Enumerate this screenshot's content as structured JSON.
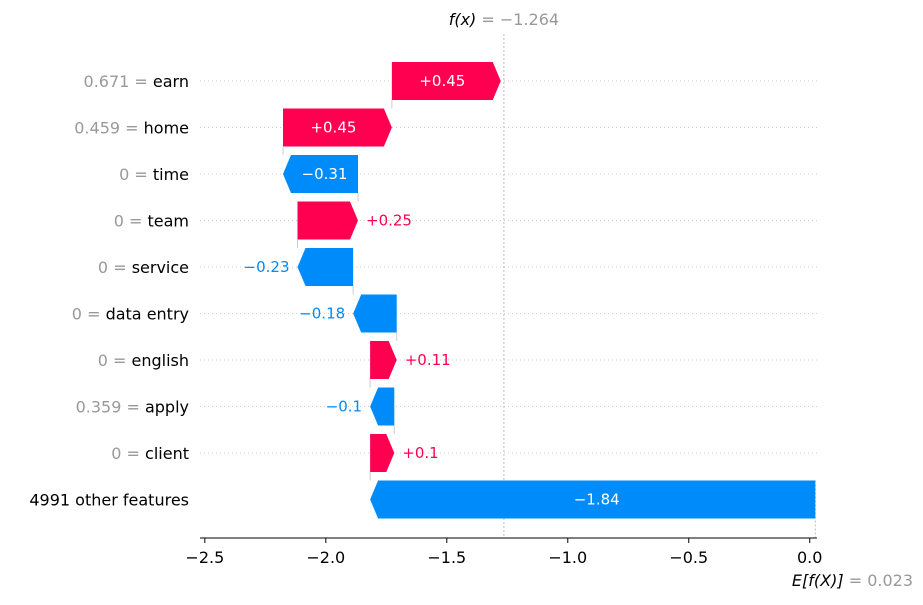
{
  "colors": {
    "positive": "#ff0051",
    "negative": "#008bfb",
    "muted": "#999999",
    "grid": "#cccccc"
  },
  "chart_data": {
    "type": "waterfall",
    "fx_label": "f(x)",
    "fx_value": "−1.264",
    "fx": -1.264,
    "base_label": "E[f(X)]",
    "base_value": "0.023",
    "base": 0.023,
    "xlim": [
      -2.52,
      0.03
    ],
    "xticks": [
      {
        "value": -2.5,
        "label": "−2.5"
      },
      {
        "value": -2.0,
        "label": "−2.0"
      },
      {
        "value": -1.5,
        "label": "−1.5"
      },
      {
        "value": -1.0,
        "label": "−1.0"
      },
      {
        "value": -0.5,
        "label": "−0.5"
      },
      {
        "value": 0.0,
        "label": "0.0"
      }
    ],
    "features": [
      {
        "value_text": "0.671",
        "name": "earn",
        "shap": 0.45,
        "label": "+0.45"
      },
      {
        "value_text": "0.459",
        "name": "home",
        "shap": 0.45,
        "label": "+0.45"
      },
      {
        "value_text": "0",
        "name": "time",
        "shap": -0.31,
        "label": "−0.31"
      },
      {
        "value_text": "0",
        "name": "team",
        "shap": 0.25,
        "label": "+0.25"
      },
      {
        "value_text": "0",
        "name": "service",
        "shap": -0.23,
        "label": "−0.23"
      },
      {
        "value_text": "0",
        "name": "data entry",
        "shap": -0.18,
        "label": "−0.18"
      },
      {
        "value_text": "0",
        "name": "english",
        "shap": 0.11,
        "label": "+0.11"
      },
      {
        "value_text": "0.359",
        "name": "apply",
        "shap": -0.1,
        "label": "−0.1"
      },
      {
        "value_text": "0",
        "name": "client",
        "shap": 0.1,
        "label": "+0.1"
      },
      {
        "value_text": "",
        "name": "4991 other features",
        "shap": -1.84,
        "label": "−1.84"
      }
    ]
  }
}
